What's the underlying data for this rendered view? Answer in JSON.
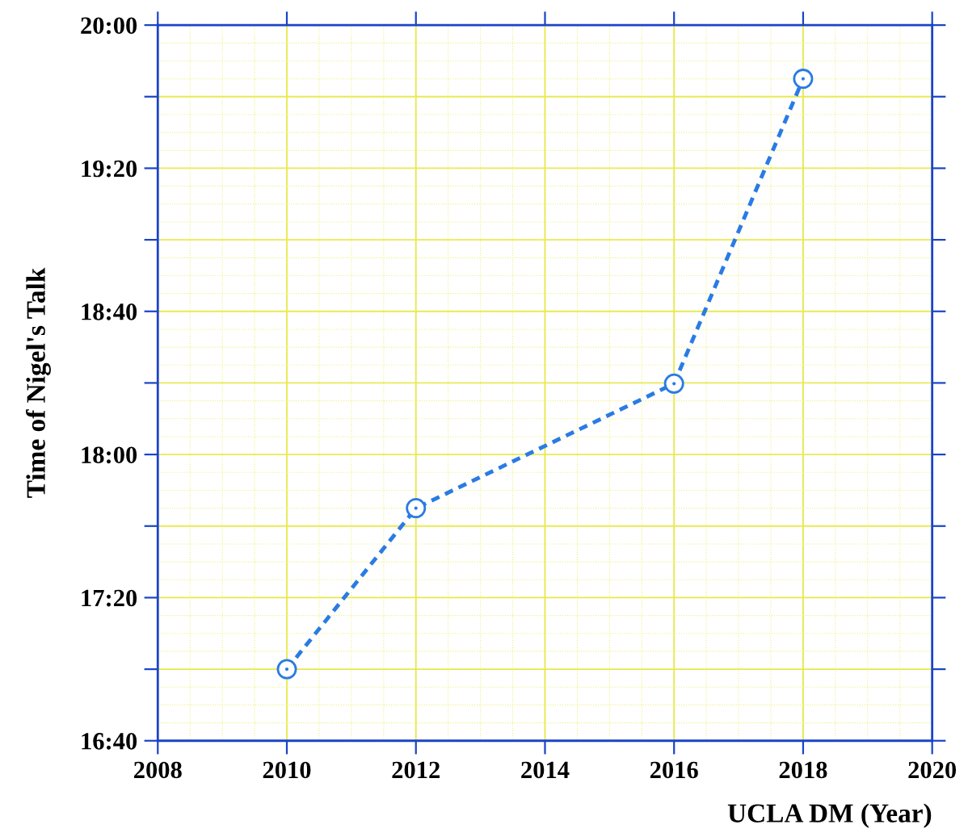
{
  "chart_data": {
    "type": "line",
    "xlabel": "UCLA DM (Year)",
    "ylabel": "Time of Nigel's Talk",
    "x": [
      2010,
      2012,
      2016,
      2018
    ],
    "series": [
      {
        "color": "#2a7be4",
        "values": [
          17.0,
          17.75,
          18.33,
          19.75
        ]
      }
    ],
    "xlim": [
      2008,
      2020
    ],
    "xticks": [
      2008,
      2010,
      2012,
      2014,
      2016,
      2018,
      2020
    ],
    "ylim": [
      16.6667,
      20.0
    ],
    "yticks": [
      {
        "value": 16.6667,
        "label": "16:40"
      },
      {
        "value": 17.0,
        "label": null
      },
      {
        "value": 17.3333,
        "label": "17:20"
      },
      {
        "value": 17.6667,
        "label": null
      },
      {
        "value": 18.0,
        "label": "18:00"
      },
      {
        "value": 18.3333,
        "label": null
      },
      {
        "value": 18.6667,
        "label": "18:40"
      },
      {
        "value": 19.0,
        "label": null
      },
      {
        "value": 19.3333,
        "label": "19:20"
      },
      {
        "value": 19.6667,
        "label": null
      },
      {
        "value": 20.0,
        "label": "20:00"
      }
    ],
    "grid": true,
    "marker": "circle",
    "line_style": "dashed"
  }
}
